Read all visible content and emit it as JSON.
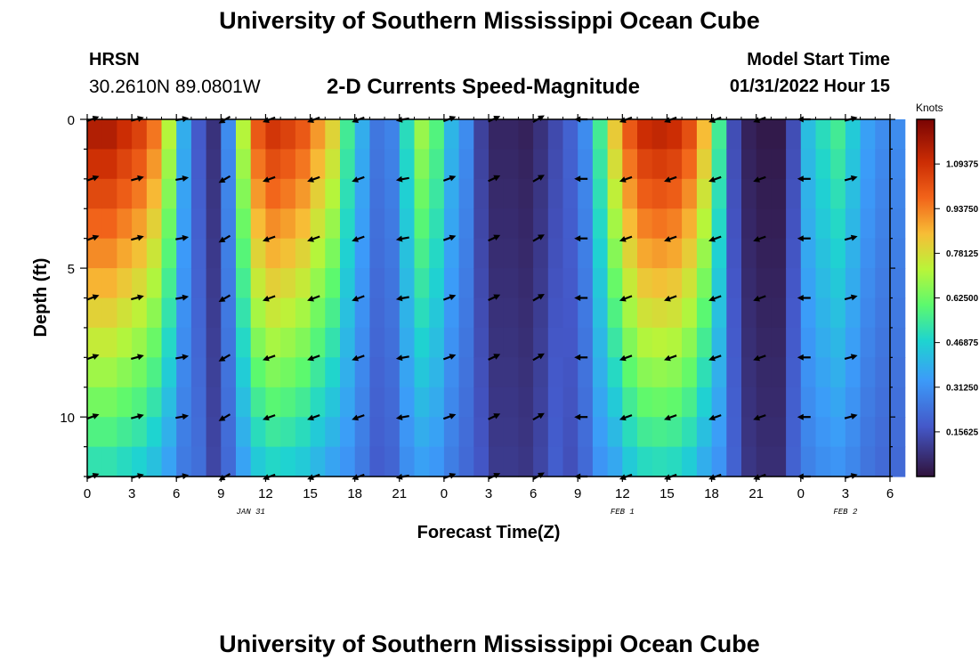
{
  "header": {
    "title": "University of Southern Mississippi Ocean Cube",
    "station": "HRSN",
    "coords": "30.2610N  89.0801W",
    "subtitle": "2-D Currents Speed-Magnitude",
    "model_start_label": "Model Start Time",
    "model_start_value": "01/31/2022 Hour 15"
  },
  "footer": {
    "title": "University of Southern Mississippi Ocean Cube"
  },
  "chart_data": {
    "type": "heatmap",
    "title": "2-D Currents Speed-Magnitude",
    "xlabel": "Forecast Time(Z)",
    "ylabel": "Depth (ft)",
    "x_range_hours": [
      0,
      54
    ],
    "y_range_ft": [
      0,
      12
    ],
    "x_ticks": [
      "0",
      "3",
      "6",
      "9",
      "12",
      "15",
      "18",
      "21",
      "0",
      "3",
      "6",
      "9",
      "12",
      "15",
      "18",
      "21",
      "0",
      "3",
      "6"
    ],
    "y_ticks": [
      "0",
      "5",
      "10"
    ],
    "date_labels": [
      {
        "hour": 11,
        "text": "JAN 31"
      },
      {
        "hour": 36,
        "text": "FEB 1"
      },
      {
        "hour": 51,
        "text": "FEB 2"
      }
    ],
    "colorbar": {
      "label": "Knots",
      "range": [
        0,
        1.25
      ],
      "ticks": [
        "1.09375",
        "0.93750",
        "0.78125",
        "0.62500",
        "0.46875",
        "0.31250",
        "0.15625"
      ]
    },
    "speed_profile_knots": [
      1.15,
      1.15,
      1.1,
      1.05,
      0.95,
      0.72,
      0.38,
      0.18,
      0.08,
      0.3,
      0.72,
      1.0,
      1.08,
      1.05,
      1.0,
      0.9,
      0.8,
      0.55,
      0.38,
      0.25,
      0.28,
      0.5,
      0.68,
      0.58,
      0.4,
      0.3,
      0.12,
      0.05,
      0.05,
      0.04,
      0.08,
      0.14,
      0.2,
      0.3,
      0.55,
      0.82,
      1.0,
      1.1,
      1.12,
      1.1,
      1.02,
      0.85,
      0.55,
      0.15,
      0.04,
      0.02,
      0.02,
      0.15,
      0.42,
      0.5,
      0.55,
      0.45,
      0.35,
      0.3,
      0.3
    ],
    "arrow_times_hours": [
      0,
      3,
      6,
      9,
      12,
      15,
      18,
      21,
      24,
      27,
      30,
      33,
      36,
      39,
      42,
      45,
      48,
      51
    ],
    "arrow_depths_ft": [
      0,
      2,
      4,
      6,
      8,
      10,
      12
    ],
    "arrow_directions_deg": [
      20,
      15,
      10,
      210,
      200,
      200,
      200,
      190,
      20,
      25,
      30,
      180,
      200,
      200,
      200,
      200,
      180,
      15
    ]
  }
}
